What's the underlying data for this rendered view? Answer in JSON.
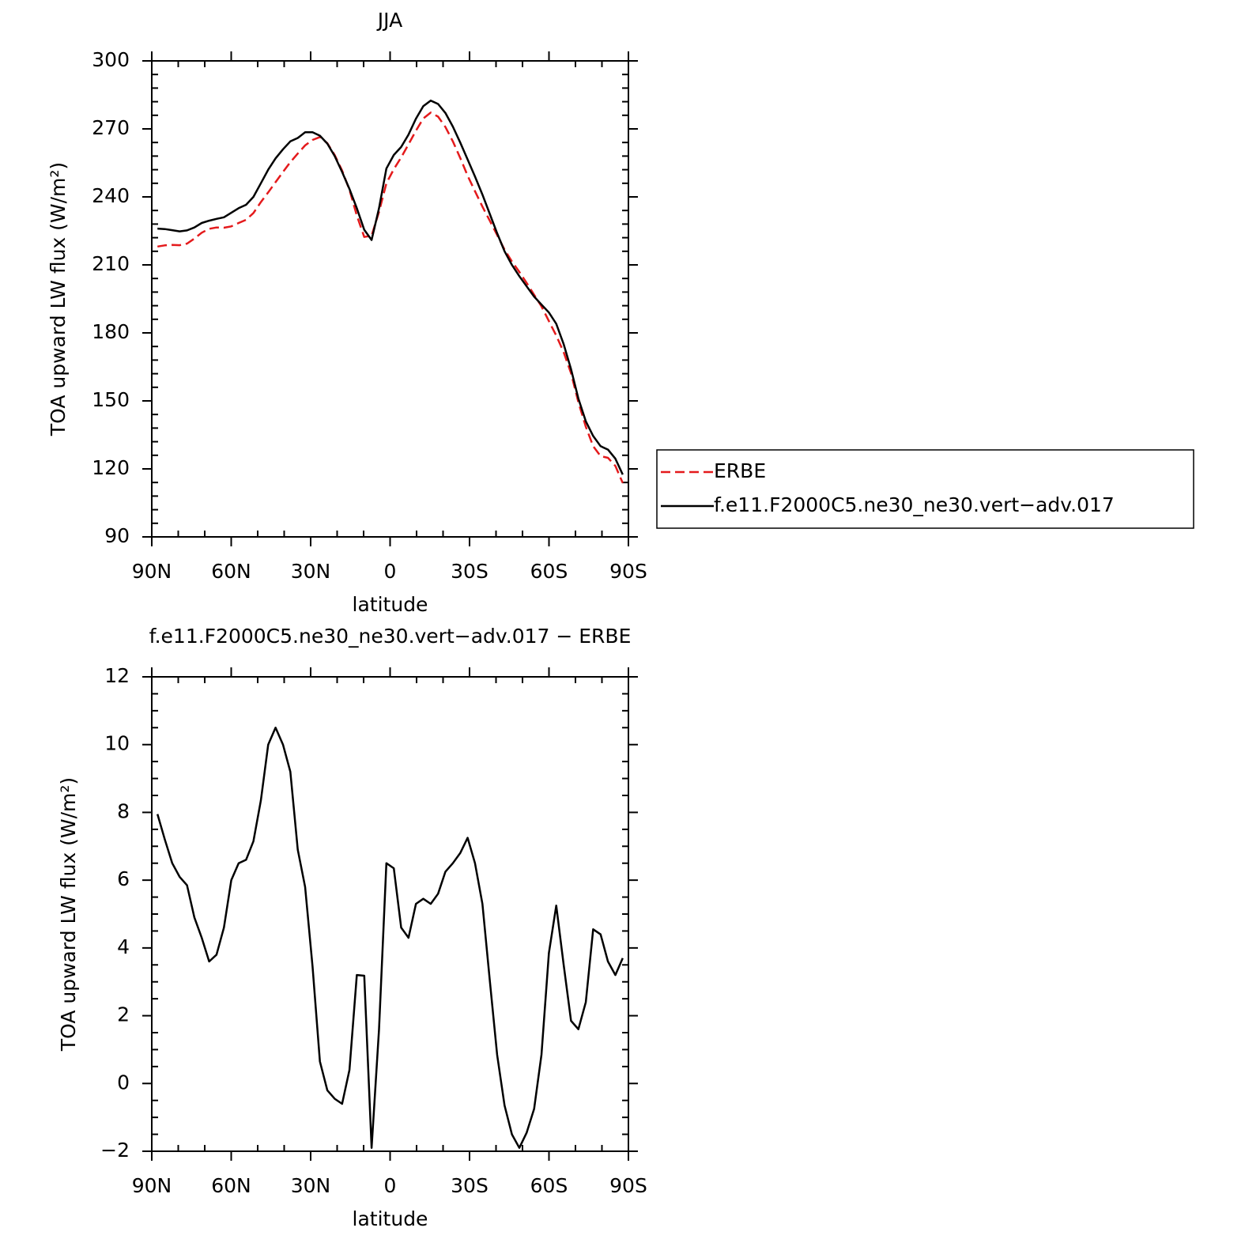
{
  "chart_data": [
    {
      "type": "line",
      "title": "JJA",
      "xlabel": "latitude",
      "ylabel": "TOA upward LW flux (W/m²)",
      "x": [
        87.86,
        85.07,
        82.28,
        79.49,
        76.7,
        73.92,
        71.13,
        68.34,
        65.55,
        62.76,
        59.97,
        57.18,
        54.39,
        51.6,
        48.81,
        46.02,
        43.24,
        40.45,
        37.66,
        34.87,
        32.08,
        29.29,
        26.5,
        23.71,
        20.92,
        18.13,
        15.35,
        12.56,
        9.77,
        6.98,
        4.19,
        1.4,
        -1.39,
        -4.18,
        -6.97,
        -9.76,
        -12.54,
        -15.33,
        -18.12,
        -20.91,
        -23.7,
        -26.49,
        -29.28,
        -32.07,
        -34.86,
        -37.65,
        -40.43,
        -43.22,
        -46.01,
        -48.8,
        -51.59,
        -54.38,
        -57.17,
        -59.96,
        -62.75,
        -65.54,
        -68.32,
        -71.11,
        -73.9,
        -76.69,
        -79.48,
        -82.27,
        -85.06,
        -87.85
      ],
      "series": [
        {
          "name": "ERBE",
          "color": "#e41a1c",
          "linestyle": "dashed",
          "values": [
            218.1,
            218.6,
            218.8,
            218.7,
            219.4,
            221.6,
            224.2,
            225.9,
            226.5,
            226.4,
            227.0,
            228.5,
            229.9,
            232.9,
            237.7,
            242.0,
            246.5,
            251.0,
            255.3,
            259.1,
            262.7,
            265.1,
            266.4,
            263.7,
            258.5,
            251.6,
            243.1,
            231.8,
            222.3,
            222.9,
            233.4,
            246.0,
            252.2,
            257.4,
            263.2,
            269.2,
            274.6,
            277.2,
            275.4,
            270.8,
            264.5,
            257.2,
            249.3,
            242.5,
            235.7,
            229.5,
            223.2,
            216.7,
            211.5,
            206.9,
            202.0,
            196.8,
            191.7,
            185.2,
            178.8,
            171.5,
            162.2,
            149.4,
            138.6,
            130.0,
            125.6,
            124.9,
            121.3,
            113.8
          ]
        },
        {
          "name": "f.e11.F2000C5.ne30_ne30.vert−adv.017",
          "color": "#000000",
          "linestyle": "solid",
          "values": [
            226.0,
            225.8,
            225.3,
            224.8,
            225.2,
            226.5,
            228.5,
            229.5,
            230.3,
            231.0,
            233.0,
            235.0,
            236.5,
            240.0,
            246.0,
            252.0,
            257.0,
            261.0,
            264.5,
            266.0,
            268.5,
            268.5,
            267.0,
            263.5,
            258.0,
            251.0,
            243.5,
            235.0,
            225.5,
            221.0,
            235.0,
            252.5,
            258.5,
            262.0,
            267.5,
            274.5,
            280.0,
            282.5,
            281.0,
            277.0,
            271.0,
            264.0,
            256.5,
            249.0,
            241.0,
            232.5,
            224.0,
            216.0,
            210.0,
            205.0,
            200.5,
            196.0,
            192.5,
            189.0,
            184.0,
            175.0,
            164.0,
            151.0,
            141.0,
            134.5,
            130.0,
            128.5,
            124.5,
            117.5
          ]
        }
      ],
      "xlim": [
        90,
        -90
      ],
      "xticks": [
        {
          "value": 90,
          "label": "90N"
        },
        {
          "value": 60,
          "label": "60N"
        },
        {
          "value": 30,
          "label": "30N"
        },
        0,
        {
          "value": -30,
          "label": "30S"
        },
        {
          "value": -60,
          "label": "60S"
        },
        {
          "value": -90,
          "label": "90S"
        }
      ],
      "ylim": [
        90,
        300
      ],
      "yticks": [
        90,
        120,
        150,
        180,
        210,
        240,
        270,
        300
      ],
      "legend": "right"
    },
    {
      "type": "line",
      "title": "f.e11.F2000C5.ne30_ne30.vert−adv.017 − ERBE",
      "xlabel": "latitude",
      "ylabel": "TOA upward LW flux (W/m²)",
      "x": [
        87.86,
        85.07,
        82.28,
        79.49,
        76.7,
        73.92,
        71.13,
        68.34,
        65.55,
        62.76,
        59.97,
        57.18,
        54.39,
        51.6,
        48.81,
        46.02,
        43.24,
        40.45,
        37.66,
        34.87,
        32.08,
        29.29,
        26.5,
        23.71,
        20.92,
        18.13,
        15.35,
        12.56,
        9.77,
        6.98,
        4.19,
        1.4,
        -1.39,
        -4.18,
        -6.97,
        -9.76,
        -12.54,
        -15.33,
        -18.12,
        -20.91,
        -23.7,
        -26.49,
        -29.28,
        -32.07,
        -34.86,
        -37.65,
        -40.43,
        -43.22,
        -46.01,
        -48.8,
        -51.59,
        -54.38,
        -57.17,
        -59.96,
        -62.75,
        -65.54,
        -68.32,
        -71.11,
        -73.9,
        -76.69,
        -79.48,
        -82.27,
        -85.06,
        -87.85
      ],
      "color": "#000000",
      "values": [
        7.95,
        7.2,
        6.5,
        6.1,
        5.85,
        4.9,
        4.3,
        3.6,
        3.8,
        4.6,
        6.0,
        6.5,
        6.6,
        7.15,
        8.35,
        10.0,
        10.5,
        10.0,
        9.2,
        6.9,
        5.8,
        3.45,
        0.65,
        -0.2,
        -0.45,
        -0.6,
        0.4,
        3.2,
        3.18,
        -1.9,
        1.6,
        6.5,
        6.35,
        4.6,
        4.3,
        5.3,
        5.45,
        5.3,
        5.6,
        6.25,
        6.5,
        6.8,
        7.25,
        6.5,
        5.3,
        3.05,
        0.85,
        -0.65,
        -1.5,
        -1.9,
        -1.45,
        -0.75,
        0.85,
        3.85,
        5.25,
        3.5,
        1.85,
        1.6,
        2.4,
        4.55,
        4.4,
        3.6,
        3.2,
        3.7
      ],
      "xlim": [
        90,
        -90
      ],
      "xticks": [
        {
          "value": 90,
          "label": "90N"
        },
        {
          "value": 60,
          "label": "60N"
        },
        {
          "value": 30,
          "label": "30N"
        },
        0,
        {
          "value": -30,
          "label": "30S"
        },
        {
          "value": -60,
          "label": "60S"
        },
        {
          "value": -90,
          "label": "90S"
        }
      ],
      "ylim": [
        -2,
        12
      ],
      "yticks": [
        {
          "value": -2,
          "label": "−2"
        },
        0,
        2,
        4,
        6,
        8,
        10,
        12
      ]
    }
  ]
}
